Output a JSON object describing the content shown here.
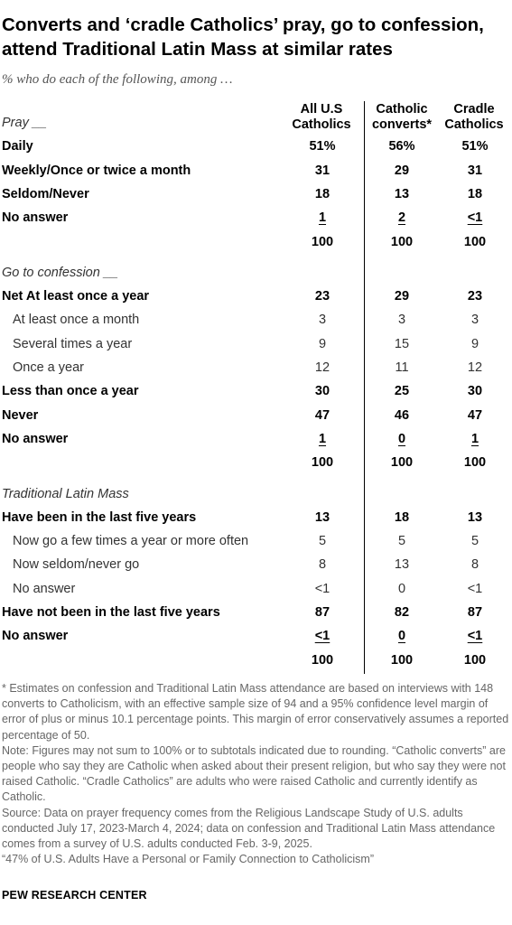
{
  "title": "Converts and ‘cradle Catholics’ pray, go to confession, attend Traditional Latin Mass at similar rates",
  "subtitle": "% who do each of the following, among …",
  "chart_data": {
    "type": "table",
    "columns": [
      "All U.S Catholics",
      "Catholic converts*",
      "Cradle Catholics"
    ],
    "sections": [
      {
        "heading": "Pray __",
        "rows": [
          {
            "label": "Daily",
            "style": "bold",
            "values": [
              "51%",
              "56%",
              "51%"
            ]
          },
          {
            "label": "Weekly/Once or twice a month",
            "style": "bold",
            "values": [
              "31",
              "29",
              "31"
            ]
          },
          {
            "label": "Seldom/Never",
            "style": "bold",
            "values": [
              "18",
              "13",
              "18"
            ]
          },
          {
            "label": "No answer",
            "style": "bold-underline",
            "values": [
              "1",
              "2",
              "<1"
            ]
          },
          {
            "label": "",
            "style": "bold",
            "values": [
              "100",
              "100",
              "100"
            ]
          }
        ]
      },
      {
        "heading": "Go to confession __",
        "rows": [
          {
            "label": "Net At least once a year",
            "style": "bold",
            "values": [
              "23",
              "29",
              "23"
            ]
          },
          {
            "label": "At least once a month",
            "style": "sub",
            "values": [
              "3",
              "3",
              "3"
            ]
          },
          {
            "label": "Several times a year",
            "style": "sub",
            "values": [
              "9",
              "15",
              "9"
            ]
          },
          {
            "label": "Once a year",
            "style": "sub",
            "values": [
              "12",
              "11",
              "12"
            ]
          },
          {
            "label": "Less than once a year",
            "style": "bold",
            "values": [
              "30",
              "25",
              "30"
            ]
          },
          {
            "label": "Never",
            "style": "bold",
            "values": [
              "47",
              "46",
              "47"
            ]
          },
          {
            "label": "No answer",
            "style": "bold-underline",
            "values": [
              "1",
              "0",
              "1"
            ]
          },
          {
            "label": "",
            "style": "bold",
            "values": [
              "100",
              "100",
              "100"
            ]
          }
        ]
      },
      {
        "heading": "Traditional Latin Mass",
        "rows": [
          {
            "label": "Have been in the last five years",
            "style": "bold",
            "values": [
              "13",
              "18",
              "13"
            ]
          },
          {
            "label": "Now go a few times a year or more often",
            "style": "sub",
            "values": [
              "5",
              "5",
              "5"
            ]
          },
          {
            "label": "Now seldom/never go",
            "style": "sub",
            "values": [
              "8",
              "13",
              "8"
            ]
          },
          {
            "label": "No answer",
            "style": "sub",
            "values": [
              "<1",
              "0",
              "<1"
            ]
          },
          {
            "label": "Have not been in the last five years",
            "style": "bold",
            "values": [
              "87",
              "82",
              "87"
            ]
          },
          {
            "label": "No answer",
            "style": "bold-underline",
            "values": [
              "<1",
              "0",
              "<1"
            ]
          },
          {
            "label": "",
            "style": "bold",
            "values": [
              "100",
              "100",
              "100"
            ]
          }
        ]
      }
    ]
  },
  "footnotes": [
    "* Estimates on confession and Traditional Latin Mass attendance are based on interviews with 148 converts to Catholicism, with an effective sample size of 94 and a 95% confidence level margin of error of plus or minus 10.1 percentage points. This margin of error conservatively assumes a reported percentage of 50.",
    "Note: Figures may not sum to 100% or to subtotals indicated due to rounding. “Catholic converts” are people who say they are Catholic when asked about their present religion, but who say they were not raised Catholic. “Cradle Catholics” are adults who were raised Catholic and currently identify as Catholic.",
    "Source: Data on prayer frequency comes from the Religious Landscape Study of U.S. adults conducted July 17, 2023-March 4, 2024; data on confession and Traditional Latin Mass attendance comes from a survey of U.S. adults conducted Feb. 3-9, 2025.",
    "“47% of U.S. Adults Have a Personal or Family Connection to Catholicism”"
  ],
  "brand": "PEW RESEARCH CENTER"
}
